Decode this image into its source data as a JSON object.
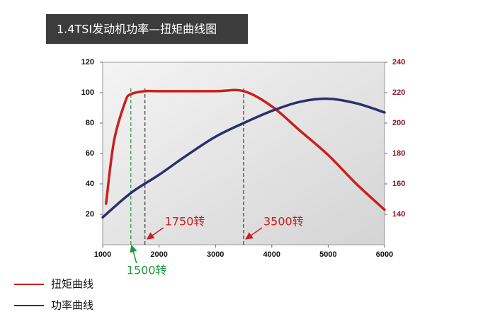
{
  "chart_data": {
    "type": "line",
    "title": "1.4TSI发动机功率—扭矩曲线图",
    "xlim": [
      1000,
      6000
    ],
    "xticks": [
      1000,
      2000,
      3000,
      4000,
      5000,
      6000
    ],
    "ylim": [
      0,
      120
    ],
    "yticks": [
      20,
      40,
      60,
      80,
      100,
      120
    ],
    "y2lim": [
      120,
      240
    ],
    "y2ticks": [
      140,
      160,
      180,
      200,
      220,
      240
    ],
    "series": [
      {
        "name": "扭矩曲线",
        "color": "#c8201e",
        "axis": "y2",
        "x": [
          1060,
          1200,
          1400,
          1500,
          1750,
          2000,
          3000,
          3500,
          4000,
          4500,
          5000,
          5500,
          6000
        ],
        "values": [
          147,
          188,
          214,
          219,
          221,
          221,
          221,
          221,
          211,
          195,
          179,
          160,
          143
        ]
      },
      {
        "name": "功率曲线",
        "color": "#2a2f6e",
        "axis": "y",
        "x": [
          1000,
          1500,
          2000,
          2500,
          3000,
          3500,
          4000,
          4500,
          5000,
          5500,
          6000
        ],
        "values": [
          18,
          34,
          46,
          59,
          71,
          80,
          88,
          94,
          96,
          93,
          87
        ]
      }
    ],
    "annotations": [
      {
        "text": "1500转",
        "x": 1500,
        "color": "#1a9a3a"
      },
      {
        "text": "1750转",
        "x": 1750,
        "color": "#c8201e"
      },
      {
        "text": "3500转",
        "x": 3500,
        "color": "#c8201e"
      }
    ]
  }
}
